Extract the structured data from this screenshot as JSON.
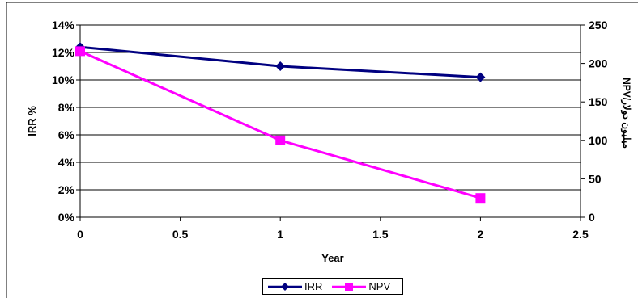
{
  "chart_data": {
    "type": "line",
    "xlabel": "Year",
    "ylabel": "IRR %",
    "ylabel_right": "NPV/ميليون دولار",
    "xlim": [
      0,
      2.5
    ],
    "x_ticks": [
      "0",
      "0.5",
      "1",
      "1.5",
      "2",
      "2.5"
    ],
    "ylim": [
      0,
      0.14
    ],
    "y_ticks": [
      "0%",
      "2%",
      "4%",
      "6%",
      "8%",
      "10%",
      "12%",
      "14%"
    ],
    "y2lim": [
      0,
      250
    ],
    "y2_ticks": [
      "0",
      "50",
      "100",
      "150",
      "200",
      "250"
    ],
    "grid": "horizontal",
    "legend_position": "bottom",
    "series": [
      {
        "name": "IRR",
        "axis": "left",
        "color": "#000080",
        "marker": "diamond",
        "x": [
          0,
          1,
          2
        ],
        "y": [
          0.124,
          0.11,
          0.102
        ]
      },
      {
        "name": "NPV",
        "axis": "right",
        "color": "#ff00ff",
        "marker": "square",
        "x": [
          0,
          1,
          2
        ],
        "y": [
          216,
          100,
          25
        ]
      }
    ]
  }
}
